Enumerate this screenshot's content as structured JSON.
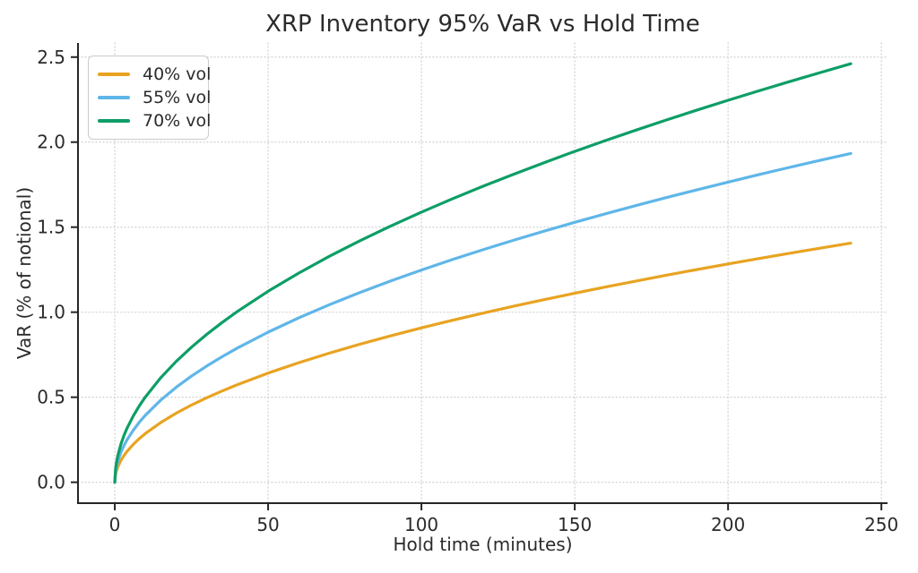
{
  "chart_data": {
    "type": "line",
    "title": "XRP Inventory 95% VaR vs Hold Time",
    "xlabel": "Hold time (minutes)",
    "ylabel": "VaR (% of notional)",
    "xlim": [
      -12,
      252
    ],
    "ylim": [
      -0.123,
      2.583
    ],
    "grid": "dotted",
    "legend_position": "upper-left",
    "x_ticks": {
      "values": [
        0,
        50,
        100,
        150,
        200,
        250
      ],
      "labels": [
        "0",
        "50",
        "100",
        "150",
        "200",
        "250"
      ]
    },
    "y_ticks": {
      "values": [
        0,
        0.5,
        1.0,
        1.5,
        2.0,
        2.5
      ],
      "labels": [
        "0.0",
        "0.5",
        "1.0",
        "1.5",
        "2.0",
        "2.5"
      ]
    },
    "x": [
      0,
      0.25,
      0.5,
      1,
      2,
      3,
      4,
      6,
      8,
      10,
      15,
      20,
      25,
      30,
      35,
      40,
      50,
      60,
      70,
      80,
      90,
      100,
      110,
      120,
      130,
      140,
      150,
      160,
      170,
      180,
      190,
      200,
      210,
      220,
      230,
      240
    ],
    "series": [
      {
        "name": "40% vol",
        "color": "#E8A321",
        "values": [
          0,
          0.0454,
          0.0642,
          0.0908,
          0.1284,
          0.1572,
          0.1815,
          0.2223,
          0.2567,
          0.287,
          0.3515,
          0.4059,
          0.4538,
          0.4971,
          0.5369,
          0.574,
          0.6418,
          0.703,
          0.7593,
          0.8118,
          0.861,
          0.9076,
          0.9519,
          0.9942,
          1.0348,
          1.0739,
          1.1116,
          1.148,
          1.1833,
          1.2177,
          1.251,
          1.2835,
          1.3152,
          1.3462,
          1.3764,
          1.406
        ]
      },
      {
        "name": "55% vol",
        "color": "#5FB6E8",
        "values": [
          0,
          0.0624,
          0.0882,
          0.1248,
          0.1765,
          0.2162,
          0.2496,
          0.3057,
          0.353,
          0.3946,
          0.4833,
          0.5581,
          0.624,
          0.6835,
          0.7383,
          0.7893,
          0.8824,
          0.9666,
          1.0441,
          1.1162,
          1.1839,
          1.2479,
          1.3088,
          1.3671,
          1.4229,
          1.4766,
          1.5285,
          1.5786,
          1.6272,
          1.6743,
          1.7202,
          1.7648,
          1.8085,
          1.8511,
          1.8926,
          1.9333
        ]
      },
      {
        "name": "70% vol",
        "color": "#0D9E66",
        "values": [
          0,
          0.0794,
          0.1123,
          0.1588,
          0.2246,
          0.2751,
          0.3177,
          0.389,
          0.4492,
          0.5022,
          0.6151,
          0.7103,
          0.7941,
          0.8699,
          0.9396,
          1.0045,
          1.1231,
          1.2302,
          1.3288,
          1.4205,
          1.5067,
          1.5883,
          1.6658,
          1.7399,
          1.8109,
          1.8793,
          1.9453,
          2.0091,
          2.0709,
          2.131,
          2.1893,
          2.2461,
          2.3016,
          2.3557,
          2.4087,
          2.4606
        ]
      }
    ],
    "colors": {
      "grid": "#cfcfcf",
      "spine": "#262626",
      "tick_text": "#2b2b2b",
      "legend_border": "#cccccc",
      "background": "#ffffff"
    }
  }
}
